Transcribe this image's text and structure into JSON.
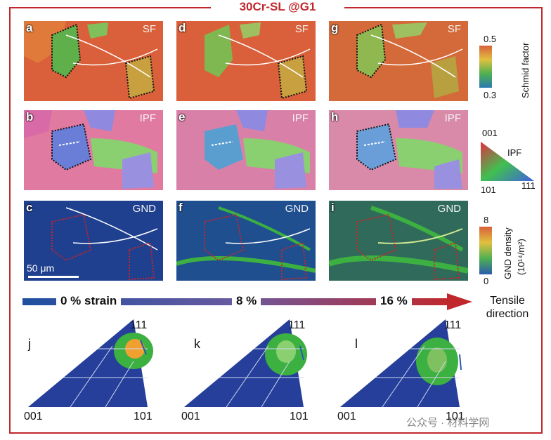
{
  "title": "30Cr-SL @G1",
  "panels": [
    {
      "id": "a",
      "mode": "SF"
    },
    {
      "id": "d",
      "mode": "SF"
    },
    {
      "id": "g",
      "mode": "SF"
    },
    {
      "id": "b",
      "mode": "IPF"
    },
    {
      "id": "e",
      "mode": "IPF"
    },
    {
      "id": "h",
      "mode": "IPF"
    },
    {
      "id": "c",
      "mode": "GND"
    },
    {
      "id": "f",
      "mode": "GND"
    },
    {
      "id": "i",
      "mode": "GND"
    }
  ],
  "scale_bar": "50 μm",
  "colorbars": {
    "sf": {
      "max": "0.5",
      "min": "0.3",
      "label": "Schmid factor"
    },
    "ipf": {
      "top": "001",
      "label": "IPF",
      "bottom_left": "101",
      "bottom_right": "111"
    },
    "gnd": {
      "max": "8",
      "min": "0",
      "label": "GND density",
      "unit": "(10¹⁴/m²)"
    }
  },
  "strain": {
    "s0": "0 % strain",
    "s1": "8 %",
    "s2": "16 %",
    "direction": "Tensile direction"
  },
  "pole_figures": [
    {
      "id": "j",
      "top": "111",
      "left": "001",
      "right": "101"
    },
    {
      "id": "k",
      "top": "111",
      "left": "001",
      "right": "101"
    },
    {
      "id": "l",
      "top": "111",
      "left": "001",
      "right": "101"
    }
  ],
  "watermark": "公众号 · 材料学网"
}
